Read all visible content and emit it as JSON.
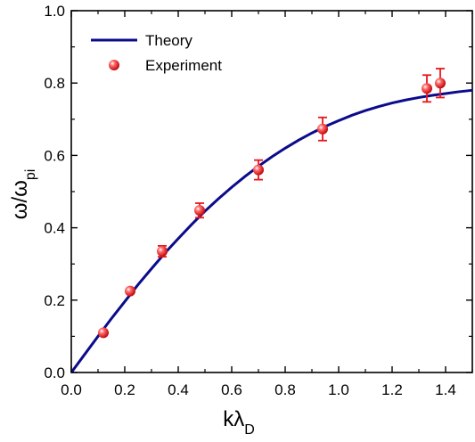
{
  "chart_data": {
    "type": "scatter",
    "title": "",
    "xlabel": {
      "main": "kλ",
      "sub": "D"
    },
    "ylabel": {
      "main": "ω/ω",
      "sub": "pi"
    },
    "xlim": [
      0.0,
      1.5
    ],
    "ylim": [
      0.0,
      1.0
    ],
    "xticks": [
      "0.0",
      "0.2",
      "0.4",
      "0.6",
      "0.8",
      "1.0",
      "1.2",
      "1.4"
    ],
    "yticks": [
      "0.0",
      "0.2",
      "0.4",
      "0.6",
      "0.8",
      "1.0"
    ],
    "grid": false,
    "legend_position": "top-left",
    "series": [
      {
        "name": "Theory",
        "kind": "line",
        "color": "#0b0b8c",
        "x": [
          0.0,
          0.05,
          0.1,
          0.15,
          0.2,
          0.25,
          0.3,
          0.35,
          0.4,
          0.45,
          0.5,
          0.55,
          0.6,
          0.65,
          0.7,
          0.75,
          0.8,
          0.85,
          0.9,
          0.95,
          1.0,
          1.05,
          1.1,
          1.15,
          1.2,
          1.25,
          1.3,
          1.35,
          1.4,
          1.45,
          1.5
        ],
        "y": [
          0.0,
          0.05,
          0.1,
          0.149,
          0.196,
          0.243,
          0.287,
          0.33,
          0.37,
          0.409,
          0.446,
          0.48,
          0.512,
          0.542,
          0.57,
          0.596,
          0.62,
          0.642,
          0.662,
          0.68,
          0.696,
          0.711,
          0.724,
          0.735,
          0.745,
          0.753,
          0.76,
          0.766,
          0.771,
          0.776,
          0.78
        ]
      },
      {
        "name": "Experiment",
        "kind": "scatter_errorbar",
        "color": "#e8161b",
        "x": [
          0.12,
          0.22,
          0.34,
          0.48,
          0.7,
          0.94,
          1.33,
          1.38
        ],
        "y": [
          0.11,
          0.225,
          0.335,
          0.448,
          0.56,
          0.673,
          0.785,
          0.8
        ],
        "yerr": [
          0.005,
          0.005,
          0.015,
          0.02,
          0.027,
          0.032,
          0.037,
          0.04
        ]
      }
    ]
  }
}
